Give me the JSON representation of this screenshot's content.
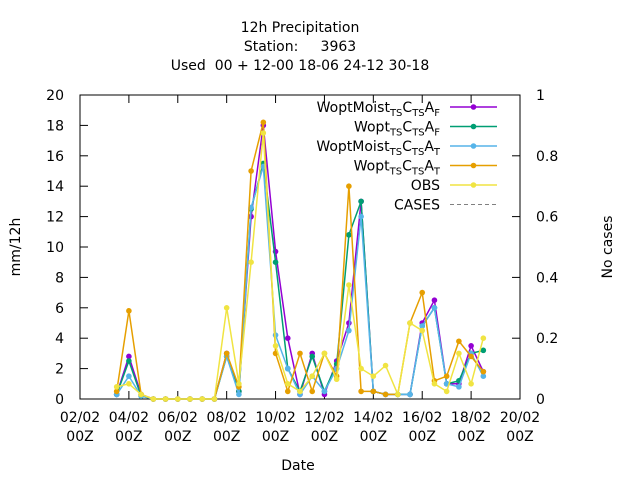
{
  "chart_data": {
    "type": "line",
    "title": [
      "12h Precipitation",
      "Station:     3963",
      "Used  00 + 12-00 18-06 24-12 30-18"
    ],
    "xlabel": "Date",
    "ylabel": "mm/12h",
    "y2label": "No cases",
    "x": [
      "03/02 12Z",
      "04/02 00Z",
      "04/02 12Z",
      "05/02 00Z",
      "05/02 12Z",
      "06/02 00Z",
      "06/02 12Z",
      "07/02 00Z",
      "07/02 12Z",
      "08/02 00Z",
      "08/02 12Z",
      "09/02 00Z",
      "09/02 12Z",
      "10/02 00Z",
      "10/02 12Z",
      "11/02 00Z",
      "11/02 12Z",
      "12/02 00Z",
      "12/02 12Z",
      "13/02 00Z",
      "13/02 12Z",
      "14/02 00Z",
      "14/02 12Z",
      "15/02 00Z",
      "15/02 12Z",
      "16/02 00Z",
      "16/02 12Z",
      "17/02 00Z",
      "17/02 12Z",
      "18/02 00Z",
      "18/02 12Z"
    ],
    "xlim": [
      "02/02 00Z",
      "20/02 00Z"
    ],
    "xticks": [
      "02/02 00Z",
      "04/02 00Z",
      "06/02 00Z",
      "08/02 00Z",
      "10/02 00Z",
      "12/02 00Z",
      "14/02 00Z",
      "16/02 00Z",
      "18/02 00Z",
      "20/02 00Z"
    ],
    "ylim": [
      0,
      20
    ],
    "yticks": [
      0,
      2,
      4,
      6,
      8,
      10,
      12,
      14,
      16,
      18,
      20
    ],
    "y2lim": [
      0,
      1
    ],
    "y2ticks": [
      0,
      0.2,
      0.4,
      0.6,
      0.8,
      1
    ],
    "legend": "top-right",
    "series": [
      {
        "name": [
          "WoptMoist",
          {
            "sub": "TS"
          },
          "C",
          {
            "sub": "TS"
          },
          "A",
          {
            "sub": "F"
          }
        ],
        "color": "#9400d3",
        "values": [
          0.3,
          2.8,
          0.3,
          0,
          0,
          0,
          0,
          0,
          0,
          3,
          0.5,
          12,
          18,
          9.7,
          4,
          0.3,
          3,
          0.3,
          2.5,
          5,
          13,
          0.5,
          0.3,
          0.3,
          0.3,
          5,
          6.5,
          1,
          1,
          3.5,
          1.8
        ]
      },
      {
        "name": [
          "Wopt",
          {
            "sub": "TS"
          },
          "C",
          {
            "sub": "TS"
          },
          "A",
          {
            "sub": "F"
          }
        ],
        "color": "#009e73",
        "values": [
          0.3,
          2.5,
          0.2,
          0,
          0,
          0,
          0,
          0,
          0,
          2.8,
          0.5,
          12.5,
          15.5,
          9,
          2,
          0.5,
          2.8,
          0.5,
          2.3,
          10.8,
          13,
          0.5,
          0.3,
          0.3,
          0.3,
          4.8,
          6,
          1,
          1.2,
          3,
          3.2
        ]
      },
      {
        "name": [
          "WoptMoist",
          {
            "sub": "TS"
          },
          "C",
          {
            "sub": "TS"
          },
          "A",
          {
            "sub": "T"
          }
        ],
        "color": "#56b4e9",
        "values": [
          0.3,
          1.5,
          0.2,
          0,
          0,
          0,
          0,
          0,
          0,
          2.8,
          0.3,
          12.6,
          15.3,
          4.2,
          2,
          0.3,
          1.5,
          0.5,
          2,
          4.5,
          12,
          0.5,
          0.3,
          0.3,
          0.3,
          4.8,
          6,
          1,
          0.8,
          3,
          1.5
        ]
      },
      {
        "name": [
          "Wopt",
          {
            "sub": "TS"
          },
          "C",
          {
            "sub": "TS"
          },
          "A",
          {
            "sub": "T"
          }
        ],
        "color": "#e69f00",
        "values": [
          0.5,
          5.8,
          0.3,
          0,
          0,
          0,
          0,
          0,
          0,
          3,
          0.8,
          15,
          18.2,
          3,
          0.5,
          3,
          0.5,
          3,
          1.5,
          14,
          0.5,
          0.5,
          0.3,
          0.3,
          5,
          7,
          1.2,
          1.5,
          3.8,
          2.8,
          1.8
        ]
      },
      {
        "name": [
          "OBS"
        ],
        "color": "#f0e442",
        "values": [
          0.8,
          1,
          0.3,
          0,
          0,
          0,
          0,
          0,
          0,
          6,
          1,
          9,
          17.5,
          3.5,
          1,
          0.5,
          1.5,
          3,
          1.3,
          7.5,
          2,
          1.5,
          2.2,
          0.3,
          5,
          4.5,
          1,
          0.5,
          3,
          1,
          4
        ]
      },
      {
        "name": [
          "CASES"
        ],
        "color": "#808080",
        "dash": true,
        "axis": "y2",
        "values": [
          null,
          null,
          null,
          null,
          null,
          null,
          null,
          null,
          null,
          null,
          null,
          null,
          null,
          null,
          null,
          null,
          null,
          null,
          null,
          null,
          null,
          null,
          null,
          null,
          null,
          null,
          null,
          null,
          null,
          null,
          null
        ]
      }
    ]
  }
}
